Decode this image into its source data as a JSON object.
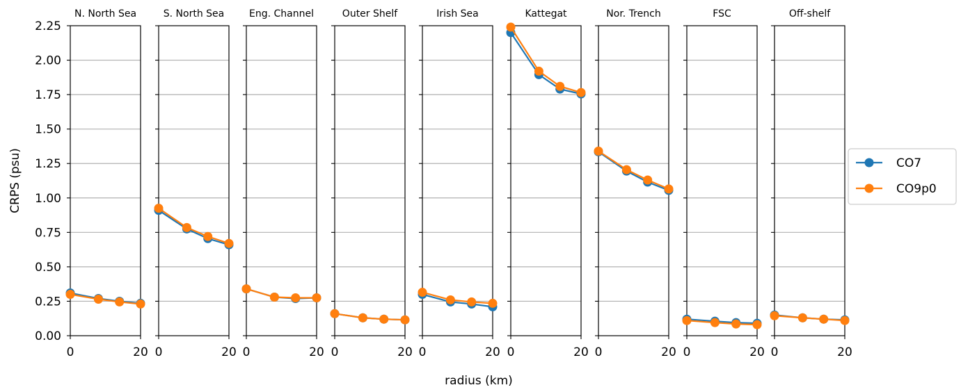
{
  "chart_data": {
    "type": "line",
    "xlabel": "radius (km)",
    "ylabel": "CRPS (psu)",
    "ylim": [
      0,
      2.25
    ],
    "xlim": [
      0,
      20
    ],
    "y_ticks": [
      "0.00",
      "0.25",
      "0.50",
      "0.75",
      "1.00",
      "1.25",
      "1.50",
      "1.75",
      "2.00",
      "2.25"
    ],
    "x_ticks": [
      "0",
      "20"
    ],
    "grid": "horizontal",
    "legend": {
      "placement": "right",
      "entries": [
        {
          "name": "CO7",
          "color": "#1f77b4"
        },
        {
          "name": "CO9p0",
          "color": "#ff7f0e"
        }
      ]
    },
    "x": [
      0,
      8,
      14,
      20
    ],
    "panels": [
      {
        "title": "N. North Sea",
        "series": [
          {
            "name": "CO7",
            "values": [
              0.31,
              0.27,
              0.25,
              0.235
            ]
          },
          {
            "name": "CO9p0",
            "values": [
              0.3,
              0.265,
              0.245,
              0.23
            ]
          }
        ]
      },
      {
        "title": "S. North Sea",
        "series": [
          {
            "name": "CO7",
            "values": [
              0.91,
              0.775,
              0.705,
              0.66
            ]
          },
          {
            "name": "CO9p0",
            "values": [
              0.925,
              0.785,
              0.72,
              0.67
            ]
          }
        ]
      },
      {
        "title": "Eng. Channel",
        "series": [
          {
            "name": "CO7",
            "values": [
              0.34,
              0.28,
              0.27,
              0.275
            ]
          },
          {
            "name": "CO9p0",
            "values": [
              0.34,
              0.28,
              0.275,
              0.275
            ]
          }
        ]
      },
      {
        "title": "Outer Shelf",
        "series": [
          {
            "name": "CO7",
            "values": [
              0.16,
              0.13,
              0.12,
              0.115
            ]
          },
          {
            "name": "CO9p0",
            "values": [
              0.16,
              0.13,
              0.12,
              0.115
            ]
          }
        ]
      },
      {
        "title": "Irish Sea",
        "series": [
          {
            "name": "CO7",
            "values": [
              0.3,
              0.245,
              0.23,
              0.21
            ]
          },
          {
            "name": "CO9p0",
            "values": [
              0.315,
              0.26,
              0.245,
              0.235
            ]
          }
        ]
      },
      {
        "title": "Kattegat",
        "series": [
          {
            "name": "CO7",
            "values": [
              2.2,
              1.895,
              1.79,
              1.755
            ]
          },
          {
            "name": "CO9p0",
            "values": [
              2.24,
              1.92,
              1.81,
              1.765
            ]
          }
        ]
      },
      {
        "title": "Nor. Trench",
        "series": [
          {
            "name": "CO7",
            "values": [
              1.335,
              1.195,
              1.115,
              1.055
            ]
          },
          {
            "name": "CO9p0",
            "values": [
              1.34,
              1.205,
              1.13,
              1.065
            ]
          }
        ]
      },
      {
        "title": "FSC",
        "series": [
          {
            "name": "CO7",
            "values": [
              0.12,
              0.105,
              0.095,
              0.09
            ]
          },
          {
            "name": "CO9p0",
            "values": [
              0.11,
              0.095,
              0.085,
              0.08
            ]
          }
        ]
      },
      {
        "title": "Off-shelf",
        "series": [
          {
            "name": "CO7",
            "values": [
              0.15,
              0.13,
              0.12,
              0.115
            ]
          },
          {
            "name": "CO9p0",
            "values": [
              0.145,
              0.13,
              0.12,
              0.11
            ]
          }
        ]
      }
    ]
  }
}
